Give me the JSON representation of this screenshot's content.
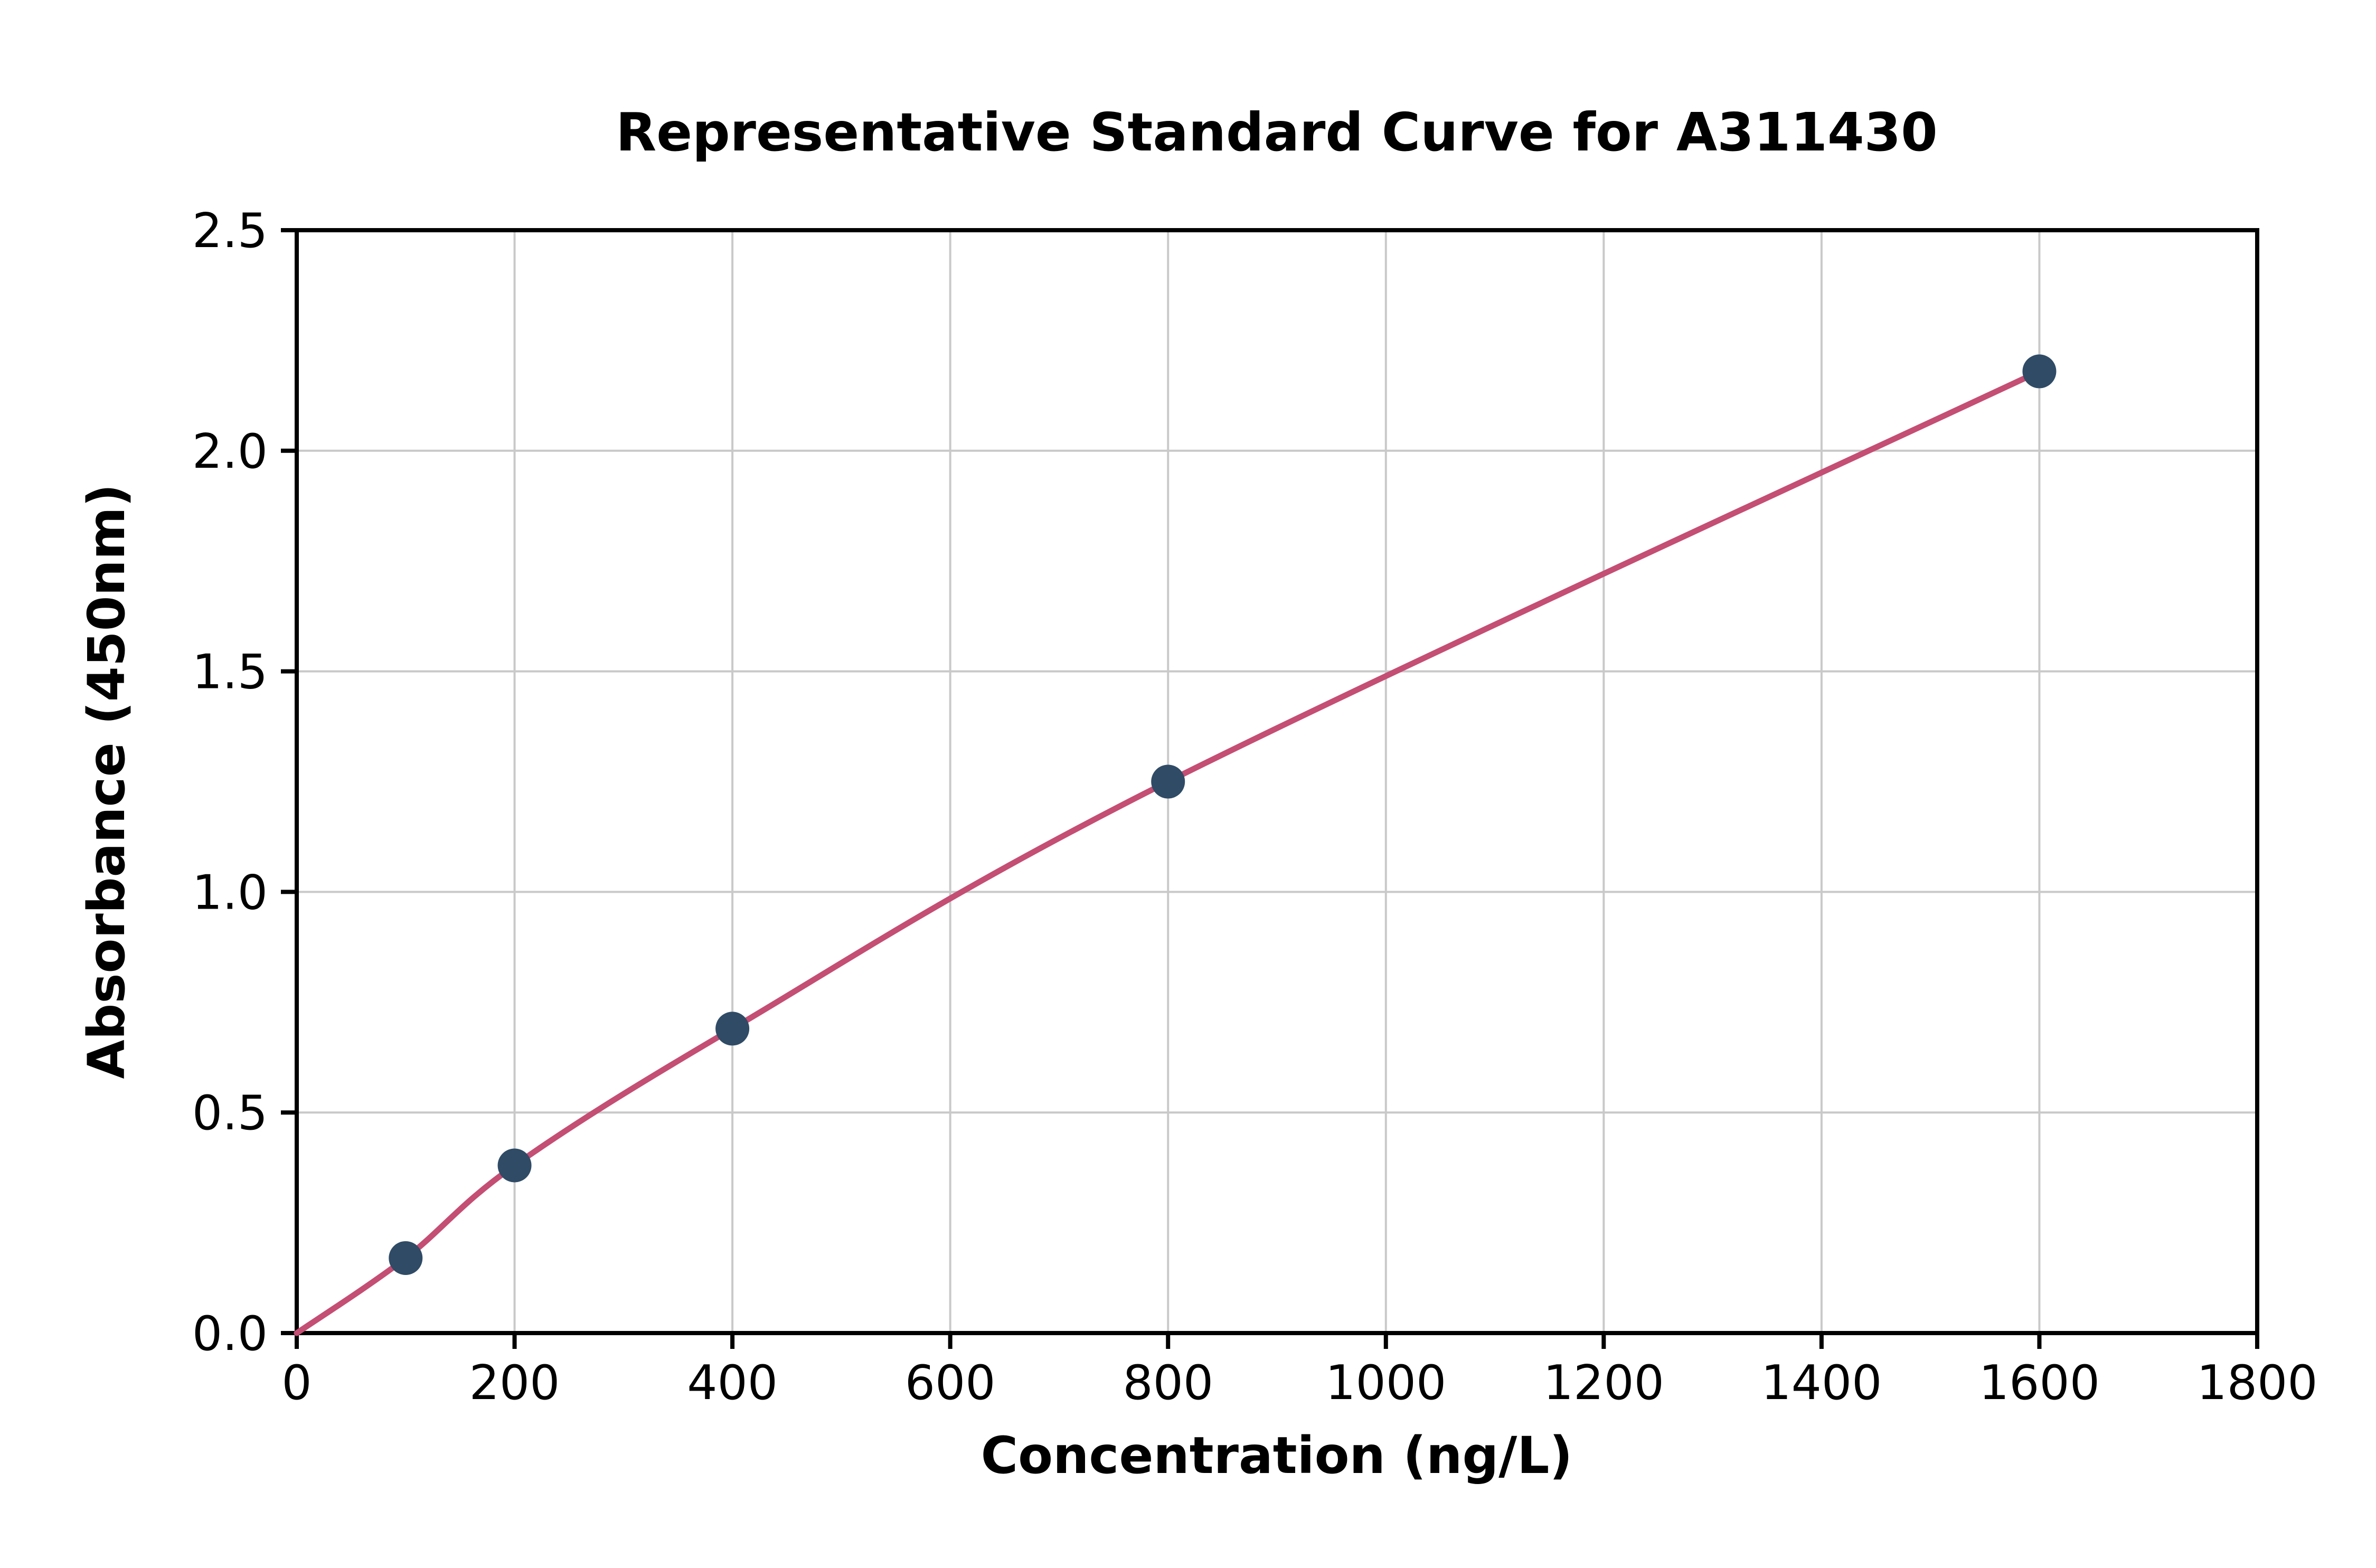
{
  "page": {
    "background": "#ffffff"
  },
  "chart_data": {
    "type": "line",
    "title": "Representative Standard Curve for A311430",
    "xlabel": "Concentration (ng/L)",
    "ylabel": "Absorbance (450nm)",
    "points": {
      "x": [
        100,
        200,
        400,
        800,
        1600
      ],
      "y": [
        0.17,
        0.38,
        0.69,
        1.25,
        2.18
      ]
    },
    "curve_origin": {
      "x": 0,
      "y": 0
    },
    "xlim": [
      0,
      1800
    ],
    "ylim": [
      0,
      2.5
    ],
    "xticks": [
      0,
      200,
      400,
      600,
      800,
      1000,
      1200,
      1400,
      1600,
      1800
    ],
    "xtick_labels": [
      "0",
      "200",
      "400",
      "600",
      "800",
      "1000",
      "1200",
      "1400",
      "1600",
      "1800"
    ],
    "yticks": [
      0,
      0.5,
      1.0,
      1.5,
      2.0,
      2.5
    ],
    "ytick_labels": [
      "0.0",
      "0.5",
      "1.0",
      "1.5",
      "2.0",
      "2.5"
    ],
    "grid": true,
    "colors": {
      "line": "#c44e74",
      "marker": "#2f4b66",
      "grid": "#c9c9c9",
      "axis": "#000000"
    }
  }
}
